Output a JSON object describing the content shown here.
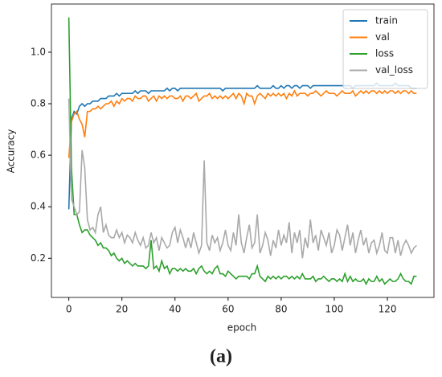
{
  "chart_data": {
    "type": "line",
    "xlabel": "epoch",
    "ylabel": "Accuracy",
    "caption": "(a)",
    "x": [
      0,
      1,
      2,
      3,
      4,
      5,
      6,
      7,
      8,
      9,
      10,
      11,
      12,
      13,
      14,
      15,
      16,
      17,
      18,
      19,
      20,
      21,
      22,
      23,
      24,
      25,
      26,
      27,
      28,
      29,
      30,
      31,
      32,
      33,
      34,
      35,
      36,
      37,
      38,
      39,
      40,
      41,
      42,
      43,
      44,
      45,
      46,
      47,
      48,
      49,
      50,
      51,
      52,
      53,
      54,
      55,
      56,
      57,
      58,
      59,
      60,
      61,
      62,
      63,
      64,
      65,
      66,
      67,
      68,
      69,
      70,
      71,
      72,
      73,
      74,
      75,
      76,
      77,
      78,
      79,
      80,
      81,
      82,
      83,
      84,
      85,
      86,
      87,
      88,
      89,
      90,
      91,
      92,
      93,
      94,
      95,
      96,
      97,
      98,
      99,
      100,
      101,
      102,
      103,
      104,
      105,
      106,
      107,
      108,
      109,
      110,
      111,
      112,
      113,
      114,
      115,
      116,
      117,
      118,
      119,
      120,
      121,
      122,
      123,
      124,
      125,
      126,
      127,
      128,
      129,
      130,
      131
    ],
    "series": [
      {
        "name": "train",
        "color": "#1f77b4",
        "values": [
          0.39,
          0.74,
          0.77,
          0.76,
          0.79,
          0.8,
          0.79,
          0.8,
          0.8,
          0.81,
          0.81,
          0.81,
          0.82,
          0.82,
          0.82,
          0.83,
          0.83,
          0.83,
          0.84,
          0.83,
          0.84,
          0.84,
          0.84,
          0.84,
          0.84,
          0.85,
          0.84,
          0.85,
          0.85,
          0.85,
          0.84,
          0.85,
          0.85,
          0.85,
          0.85,
          0.85,
          0.85,
          0.86,
          0.85,
          0.86,
          0.86,
          0.85,
          0.86,
          0.86,
          0.86,
          0.86,
          0.86,
          0.86,
          0.86,
          0.86,
          0.86,
          0.86,
          0.86,
          0.86,
          0.86,
          0.86,
          0.86,
          0.86,
          0.85,
          0.86,
          0.86,
          0.86,
          0.86,
          0.86,
          0.86,
          0.86,
          0.86,
          0.86,
          0.86,
          0.86,
          0.86,
          0.87,
          0.86,
          0.86,
          0.86,
          0.86,
          0.86,
          0.87,
          0.86,
          0.86,
          0.87,
          0.86,
          0.87,
          0.87,
          0.86,
          0.87,
          0.87,
          0.86,
          0.87,
          0.87,
          0.87,
          0.86,
          0.87,
          0.87,
          0.87,
          0.87,
          0.87,
          0.87,
          0.87,
          0.87,
          0.87,
          0.87,
          0.87,
          0.87,
          0.87,
          0.87,
          0.87,
          0.86,
          0.87,
          0.87,
          0.87,
          0.87,
          0.87,
          0.87,
          0.87,
          0.87,
          0.88,
          0.87,
          0.87,
          0.87,
          0.87,
          0.87,
          0.87,
          0.88,
          0.87,
          0.87,
          0.87,
          0.87,
          0.87,
          0.86,
          0.86,
          0.86
        ]
      },
      {
        "name": "val",
        "color": "#ff7f0e",
        "values": [
          0.59,
          0.73,
          0.76,
          0.77,
          0.74,
          0.72,
          0.67,
          0.77,
          0.77,
          0.78,
          0.78,
          0.79,
          0.78,
          0.79,
          0.8,
          0.8,
          0.81,
          0.79,
          0.81,
          0.8,
          0.82,
          0.81,
          0.82,
          0.82,
          0.81,
          0.83,
          0.82,
          0.82,
          0.83,
          0.83,
          0.81,
          0.82,
          0.83,
          0.81,
          0.83,
          0.82,
          0.83,
          0.82,
          0.83,
          0.83,
          0.82,
          0.82,
          0.83,
          0.81,
          0.83,
          0.83,
          0.82,
          0.83,
          0.84,
          0.81,
          0.82,
          0.83,
          0.83,
          0.84,
          0.82,
          0.83,
          0.82,
          0.83,
          0.82,
          0.83,
          0.82,
          0.83,
          0.84,
          0.82,
          0.84,
          0.83,
          0.8,
          0.84,
          0.83,
          0.83,
          0.8,
          0.83,
          0.84,
          0.83,
          0.82,
          0.84,
          0.83,
          0.84,
          0.83,
          0.84,
          0.83,
          0.84,
          0.82,
          0.84,
          0.83,
          0.85,
          0.83,
          0.84,
          0.84,
          0.84,
          0.83,
          0.84,
          0.84,
          0.85,
          0.84,
          0.83,
          0.84,
          0.85,
          0.84,
          0.84,
          0.84,
          0.83,
          0.84,
          0.85,
          0.84,
          0.84,
          0.84,
          0.85,
          0.83,
          0.84,
          0.85,
          0.84,
          0.85,
          0.84,
          0.85,
          0.85,
          0.84,
          0.85,
          0.84,
          0.85,
          0.84,
          0.85,
          0.85,
          0.84,
          0.85,
          0.84,
          0.85,
          0.85,
          0.84,
          0.85,
          0.84,
          0.84
        ]
      },
      {
        "name": "loss",
        "color": "#2ca02c",
        "values": [
          1.135,
          0.55,
          0.37,
          0.37,
          0.33,
          0.3,
          0.31,
          0.31,
          0.29,
          0.28,
          0.27,
          0.25,
          0.26,
          0.24,
          0.24,
          0.23,
          0.21,
          0.22,
          0.2,
          0.19,
          0.2,
          0.18,
          0.19,
          0.18,
          0.17,
          0.18,
          0.17,
          0.17,
          0.17,
          0.16,
          0.17,
          0.27,
          0.16,
          0.17,
          0.15,
          0.19,
          0.16,
          0.17,
          0.14,
          0.16,
          0.16,
          0.15,
          0.16,
          0.15,
          0.16,
          0.15,
          0.15,
          0.16,
          0.14,
          0.16,
          0.17,
          0.15,
          0.14,
          0.15,
          0.14,
          0.16,
          0.17,
          0.14,
          0.14,
          0.13,
          0.15,
          0.14,
          0.13,
          0.12,
          0.13,
          0.13,
          0.13,
          0.13,
          0.12,
          0.14,
          0.14,
          0.17,
          0.13,
          0.12,
          0.11,
          0.13,
          0.12,
          0.13,
          0.12,
          0.13,
          0.12,
          0.13,
          0.13,
          0.12,
          0.13,
          0.12,
          0.13,
          0.12,
          0.14,
          0.12,
          0.12,
          0.12,
          0.13,
          0.11,
          0.12,
          0.12,
          0.13,
          0.12,
          0.11,
          0.12,
          0.12,
          0.11,
          0.12,
          0.11,
          0.14,
          0.11,
          0.13,
          0.11,
          0.12,
          0.11,
          0.11,
          0.12,
          0.1,
          0.12,
          0.11,
          0.11,
          0.13,
          0.11,
          0.12,
          0.1,
          0.11,
          0.12,
          0.11,
          0.11,
          0.12,
          0.14,
          0.12,
          0.11,
          0.11,
          0.1,
          0.13,
          0.13
        ]
      },
      {
        "name": "val_loss",
        "color": "#a9a9a9",
        "values": [
          0.82,
          0.43,
          0.4,
          0.37,
          0.38,
          0.62,
          0.55,
          0.35,
          0.31,
          0.32,
          0.3,
          0.37,
          0.4,
          0.3,
          0.33,
          0.29,
          0.28,
          0.28,
          0.31,
          0.28,
          0.3,
          0.26,
          0.29,
          0.28,
          0.26,
          0.3,
          0.27,
          0.25,
          0.28,
          0.24,
          0.25,
          0.3,
          0.26,
          0.28,
          0.23,
          0.28,
          0.26,
          0.24,
          0.25,
          0.3,
          0.32,
          0.26,
          0.31,
          0.28,
          0.24,
          0.28,
          0.24,
          0.3,
          0.26,
          0.22,
          0.25,
          0.58,
          0.26,
          0.23,
          0.29,
          0.26,
          0.28,
          0.23,
          0.26,
          0.31,
          0.25,
          0.23,
          0.3,
          0.25,
          0.37,
          0.26,
          0.22,
          0.28,
          0.33,
          0.24,
          0.26,
          0.37,
          0.22,
          0.25,
          0.3,
          0.27,
          0.21,
          0.27,
          0.24,
          0.31,
          0.25,
          0.29,
          0.26,
          0.34,
          0.22,
          0.3,
          0.26,
          0.31,
          0.2,
          0.28,
          0.24,
          0.35,
          0.26,
          0.29,
          0.23,
          0.31,
          0.28,
          0.25,
          0.3,
          0.22,
          0.25,
          0.31,
          0.29,
          0.23,
          0.28,
          0.33,
          0.25,
          0.3,
          0.22,
          0.27,
          0.31,
          0.25,
          0.28,
          0.22,
          0.26,
          0.27,
          0.22,
          0.25,
          0.3,
          0.23,
          0.22,
          0.28,
          0.28,
          0.22,
          0.27,
          0.21,
          0.25,
          0.27,
          0.25,
          0.22,
          0.24,
          0.25
        ]
      }
    ],
    "xlim": [
      -6.55,
      137.55
    ],
    "ylim": [
      0.048,
      1.187
    ],
    "xticks": [
      0,
      20,
      40,
      60,
      80,
      100,
      120
    ],
    "yticks": [
      0.2,
      0.4,
      0.6,
      0.8,
      {
        "value": 1,
        "label": "1.0"
      }
    ],
    "legend": "upper right"
  }
}
